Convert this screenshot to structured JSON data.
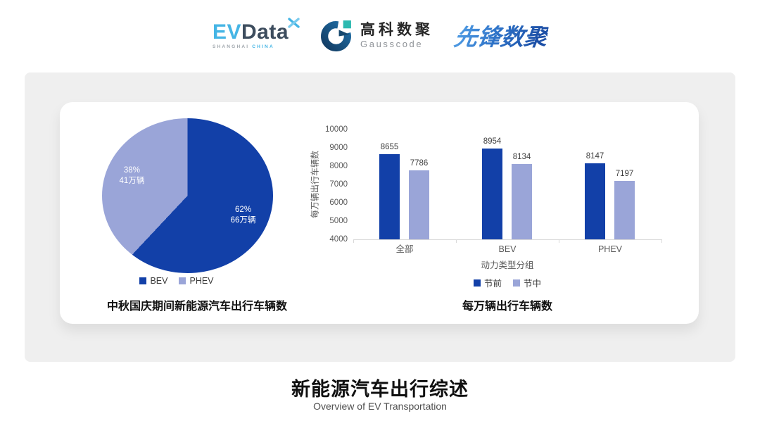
{
  "header": {
    "evdata": {
      "ev": "EV",
      "data": "Data",
      "sub1": "SHANGHAI",
      "sub2": "CHINA"
    },
    "gausscode": {
      "cn": "高科数聚",
      "en": "Gausscode"
    },
    "pioneer": {
      "text": "先锋数聚"
    }
  },
  "colors": {
    "series_dark_blue": "#1240A8",
    "series_light_purple": "#9AA5D8",
    "panel_gray": "#EFEFEF",
    "axis_gray": "#D9D9D9",
    "evdata_blue": "#45B5E5",
    "evdata_dark": "#3D4D5E",
    "gausscode_navy": "#1A5580",
    "gausscode_teal": "#2CB9B0",
    "pioneer_blue": "#2E73C8"
  },
  "chart_data": [
    {
      "type": "pie",
      "title": "中秋国庆期间新能源汽车出行车辆数",
      "slices": [
        {
          "label": "BEV",
          "percent": 62,
          "value_label": "66万辆",
          "color": "#1240A8"
        },
        {
          "label": "PHEV",
          "percent": 38,
          "value_label": "41万辆",
          "color": "#9AA5D8"
        }
      ],
      "start": "12-oclock-clockwise",
      "legend_position": "bottom"
    },
    {
      "type": "bar",
      "title": "每万辆出行车辆数",
      "categories": [
        "全部",
        "BEV",
        "PHEV"
      ],
      "series": [
        {
          "name": "节前",
          "values": [
            8655,
            8954,
            8147
          ],
          "color": "#1240A8"
        },
        {
          "name": "节中",
          "values": [
            7786,
            8134,
            7197
          ],
          "color": "#9AA5D8"
        }
      ],
      "xlabel": "动力类型分组",
      "ylabel": "每万辆出行车辆数",
      "ylim": [
        4000,
        10000
      ],
      "ytick_step": 1000,
      "grid": false,
      "legend_position": "bottom"
    }
  ],
  "footer": {
    "title": "新能源汽车出行综述",
    "subtitle": "Overview of EV Transportation"
  }
}
